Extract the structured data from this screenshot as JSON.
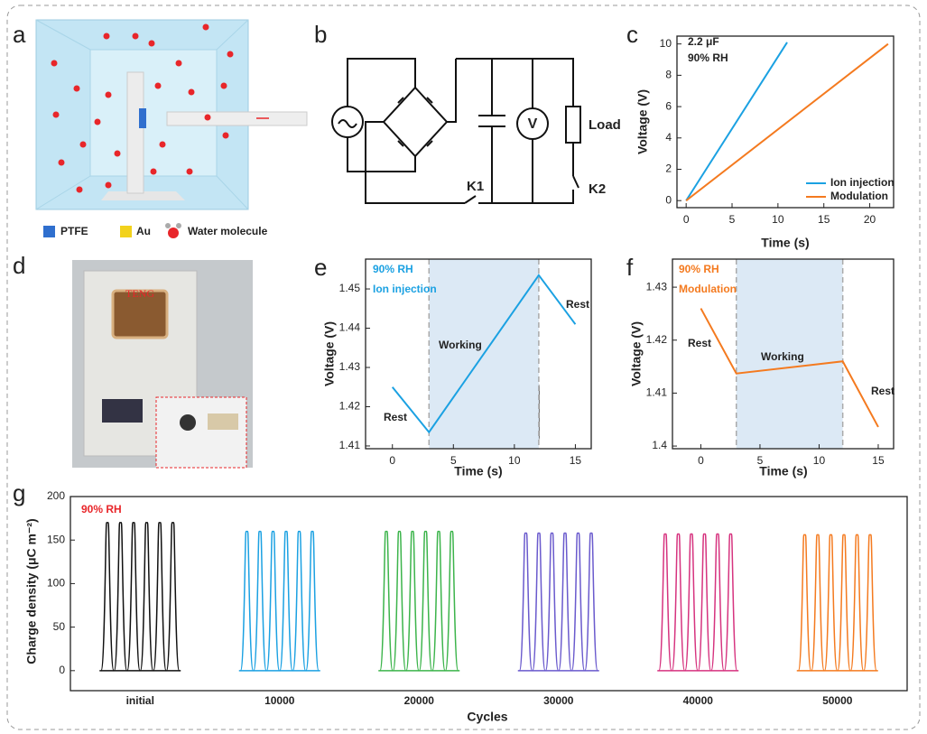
{
  "panels": {
    "a": {
      "letter": "a",
      "legend": [
        {
          "label": "PTFE",
          "color": "#2f6fce"
        },
        {
          "label": "Au",
          "color": "#f2d21c"
        },
        {
          "label": "Water molecule",
          "color": "#e8262a"
        }
      ]
    },
    "b": {
      "letter": "b",
      "labels": {
        "meter": "V",
        "load": "Load",
        "k1": "K1",
        "k2": "K2"
      }
    },
    "d": {
      "letter": "d",
      "labels": {
        "device": "TENG"
      }
    }
  },
  "chart_data": [
    {
      "type": "line",
      "panel": "c",
      "xlabel": "Time (s)",
      "ylabel": "Voltage (V)",
      "annotations": [
        "2.2 μF",
        "90% RH"
      ],
      "annotation_colors": [
        "#222",
        "#222"
      ],
      "series": [
        {
          "name": "Ion injection",
          "color": "#1ba1e2",
          "x": [
            0,
            11
          ],
          "values": [
            0,
            10.1
          ]
        },
        {
          "name": "Modulation",
          "color": "#f47a1f",
          "x": [
            0,
            22
          ],
          "values": [
            0,
            10
          ]
        }
      ],
      "xlim": [
        -1,
        22.6
      ],
      "xticks": [
        0,
        5,
        10,
        15,
        20
      ],
      "ylim": [
        -0.45,
        10.5
      ],
      "yticks": [
        0,
        2,
        4,
        6,
        8,
        10
      ],
      "legend": "lower right"
    },
    {
      "type": "line",
      "panel": "e",
      "xlabel": "Time (s)",
      "ylabel": "Voltage (V)",
      "annotations": [
        "90% RH",
        "Ion injection",
        "Rest",
        "Working",
        "Rest"
      ],
      "annotation_colors": [
        "#1ba1e2",
        "#1ba1e2",
        "#222",
        "#222",
        "#222"
      ],
      "x": [
        0,
        3,
        12,
        15
      ],
      "series": [
        {
          "color": "#1ba1e2",
          "values": [
            1.425,
            1.4135,
            1.4535,
            1.441
          ]
        }
      ],
      "highlight": [
        3,
        12
      ],
      "highlight_color": "#dce9f5",
      "xlim": [
        -2.2,
        16.3
      ],
      "xticks": [
        0,
        5,
        10,
        15
      ],
      "ylim": [
        1.4093,
        1.4576
      ],
      "yticks": [
        1.41,
        1.42,
        1.43,
        1.44,
        1.45
      ]
    },
    {
      "type": "line",
      "panel": "f",
      "xlabel": "Time (s)",
      "ylabel": "Voltage (V)",
      "annotations": [
        "90% RH",
        "Modulation",
        "Rest",
        "Working",
        "Rest"
      ],
      "annotation_colors": [
        "#f47a1f",
        "#f47a1f",
        "#222",
        "#222",
        "#222"
      ],
      "x": [
        0,
        3,
        12,
        15
      ],
      "series": [
        {
          "color": "#f47a1f",
          "values": [
            1.426,
            1.4137,
            1.416,
            1.4036
          ]
        }
      ],
      "highlight": [
        3,
        12
      ],
      "highlight_color": "#dce9f5",
      "xlim": [
        -2.4,
        16.3
      ],
      "xticks": [
        0,
        5,
        10,
        15
      ],
      "ylim": [
        1.3995,
        1.4353
      ],
      "yticks": [
        1.4,
        1.41,
        1.42,
        1.43
      ]
    },
    {
      "type": "peaks",
      "panel": "g",
      "xlabel": "Cycles",
      "ylabel": "Charge density (μC m⁻²)",
      "annotations": [
        "90% RH"
      ],
      "annotation_colors": [
        "#e8262a"
      ],
      "categories": [
        "initial",
        "10000",
        "20000",
        "30000",
        "40000",
        "50000"
      ],
      "series": [
        {
          "color": "#111111",
          "values": [
            170,
            170,
            170,
            170,
            170,
            170
          ]
        },
        {
          "color": "#1ba1e2",
          "values": [
            160,
            160,
            160,
            160,
            160,
            160
          ]
        },
        {
          "color": "#3cb44b",
          "values": [
            160,
            160,
            160,
            160,
            160,
            160
          ]
        },
        {
          "color": "#6a5acd",
          "values": [
            158,
            158,
            158,
            158,
            158,
            158
          ]
        },
        {
          "color": "#d6337f",
          "values": [
            157,
            157,
            157,
            157,
            157,
            157
          ]
        },
        {
          "color": "#f47a1f",
          "values": [
            156,
            156,
            156,
            156,
            156,
            156
          ]
        }
      ],
      "ylim": [
        -23,
        200
      ],
      "yticks": [
        0,
        50,
        100,
        150,
        200
      ]
    }
  ]
}
